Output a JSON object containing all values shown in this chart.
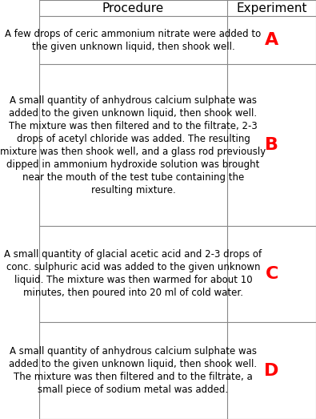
{
  "title_procedure": "Procedure",
  "title_experiment": "Experiment",
  "rows": [
    {
      "procedure": "A few drops of ceric ammonium nitrate were added to the given unknown liquid, then shook well.",
      "experiment": "A"
    },
    {
      "procedure": "A small quantity of anhydrous calcium sulphate was added to the given unknown liquid, then shook well. The mixture was then filtered and to the filtrate, 2-3 drops of acetyl chloride was added. The resulting mixture was then shook well, and a glass rod previously dipped in ammonium hydroxide solution was brought near the mouth of the test tube containing the resulting mixture.",
      "experiment": "B"
    },
    {
      "procedure": "A small quantity of glacial acetic acid and 2-3 drops of conc. sulphuric acid was added to the given unknown liquid. The mixture was then warmed for about 10 minutes, then poured into 20 ml of cold water.",
      "experiment": "C"
    },
    {
      "procedure": "A small quantity of anhydrous calcium sulphate was added to the given unknown liquid, then shook well. The mixture was then filtered and to the filtrate, a small piece of sodium metal was added.",
      "experiment": "D"
    }
  ],
  "header_bg": "#ffffff",
  "cell_bg": "#ffffff",
  "border_color": "#888888",
  "text_color": "#000000",
  "experiment_color": "#ff0000",
  "header_fontsize": 11,
  "body_fontsize": 8.5,
  "experiment_fontsize": 16,
  "col_split": 0.68,
  "background": "#ffffff"
}
